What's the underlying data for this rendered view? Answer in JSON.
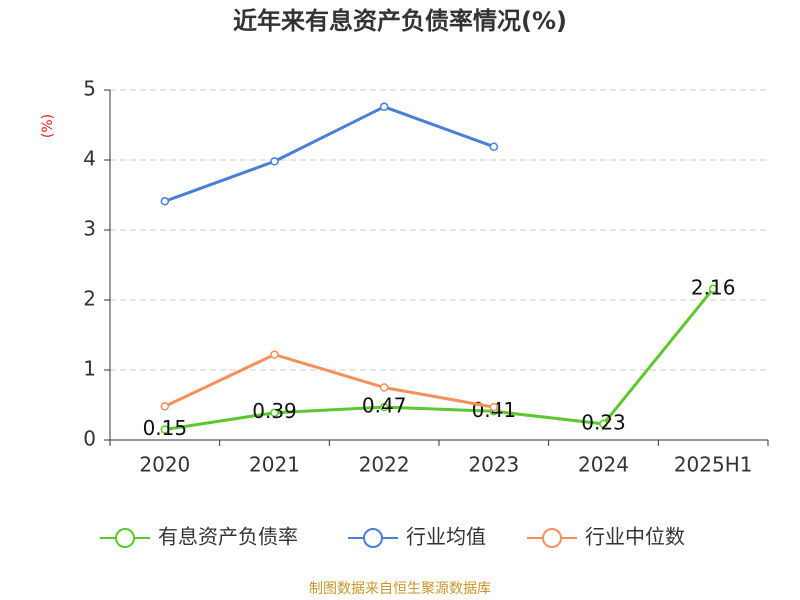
{
  "chart_data": {
    "type": "line",
    "title": "近年来有息资产负债率情况(%)",
    "y_label": "(%)",
    "categories": [
      "2020",
      "2021",
      "2022",
      "2023",
      "2024",
      "2025H1"
    ],
    "series": [
      {
        "name": "有息资产负债率",
        "color": "#5cc72e",
        "values": [
          0.15,
          0.39,
          0.47,
          0.41,
          0.23,
          2.16
        ],
        "show_labels": true
      },
      {
        "name": "行业均值",
        "color": "#4a7fd9",
        "values": [
          3.41,
          3.98,
          4.76,
          4.19,
          null,
          null
        ]
      },
      {
        "name": "行业中位数",
        "color": "#f5905c",
        "values": [
          0.48,
          1.22,
          0.75,
          0.47,
          null,
          null
        ]
      }
    ],
    "ylim": [
      0,
      5
    ],
    "yticks": [
      0,
      1,
      2,
      3,
      4,
      5
    ],
    "grid": true,
    "source": "制图数据来自恒生聚源数据库"
  }
}
